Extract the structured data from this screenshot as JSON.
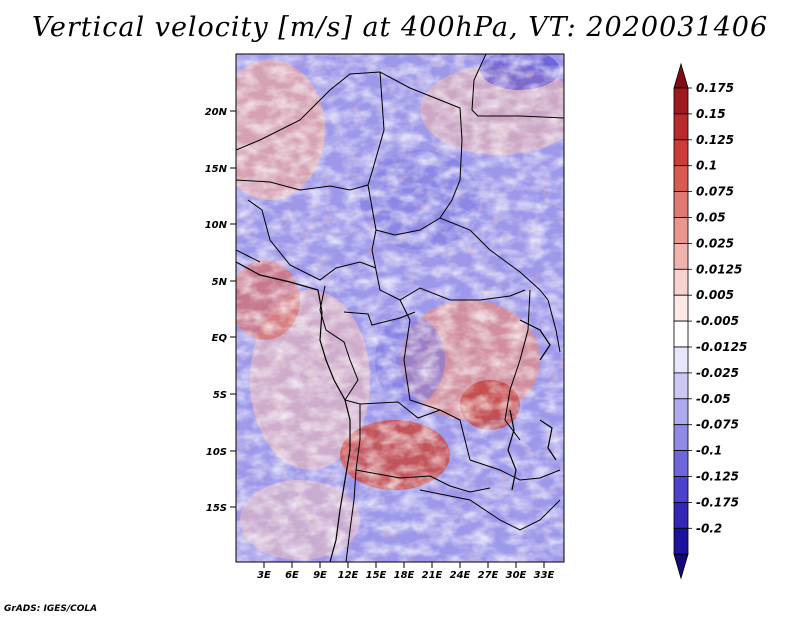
{
  "title": "Vertical velocity [m/s] at 400hPa, VT: 2020031406",
  "credit": "GrADS: IGES/COLA",
  "map": {
    "region": "Central Africa",
    "lat_labels": [
      "20N",
      "15N",
      "10N",
      "5N",
      "EQ",
      "5S",
      "10S",
      "15S"
    ],
    "lon_labels": [
      "3E",
      "6E",
      "9E",
      "12E",
      "15E",
      "18E",
      "21E",
      "24E",
      "27E",
      "30E",
      "33E"
    ]
  },
  "colorbar": {
    "labels": [
      "0.175",
      "0.15",
      "0.125",
      "0.1",
      "0.075",
      "0.05",
      "0.025",
      "0.0125",
      "0.005",
      "-0.005",
      "-0.0125",
      "-0.025",
      "-0.05",
      "-0.075",
      "-0.1",
      "-0.125",
      "-0.175",
      "-0.2"
    ],
    "colors": [
      "#a01820",
      "#b82a2c",
      "#cc3d3a",
      "#d85a52",
      "#e07a72",
      "#e8968e",
      "#f0b4ae",
      "#f8d2ce",
      "#fde9e6",
      "#ffffff",
      "#e8e6fb",
      "#cbc8f4",
      "#b0aaee",
      "#9189e6",
      "#6f66dc",
      "#4c41cc",
      "#3325b5",
      "#1e139c"
    ],
    "top_arrow_color": "#7e0c14",
    "bottom_arrow_color": "#14087a"
  }
}
